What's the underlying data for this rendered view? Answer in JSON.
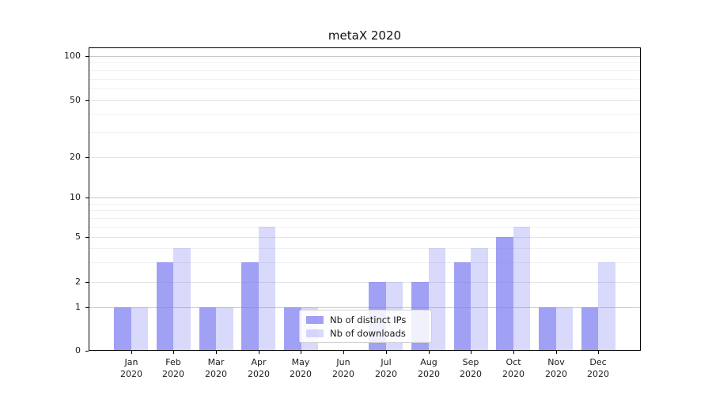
{
  "title": "metaX 2020",
  "chart_data": {
    "type": "bar",
    "title": "metaX 2020",
    "categories": [
      "Jan",
      "Feb",
      "Mar",
      "Apr",
      "May",
      "Jun",
      "Jul",
      "Aug",
      "Sep",
      "Oct",
      "Nov",
      "Dec"
    ],
    "category_year_line": "2020",
    "series": [
      {
        "name": "Nb of distinct IPs",
        "color": "rgba(120,120,240,0.70)",
        "values": [
          1,
          3,
          1,
          3,
          1,
          0,
          2,
          2,
          3,
          5,
          1,
          1
        ]
      },
      {
        "name": "Nb of downloads",
        "color": "rgba(120,120,240,0.28)",
        "values": [
          1,
          4,
          1,
          6,
          1,
          0,
          2,
          4,
          4,
          6,
          1,
          3
        ]
      }
    ],
    "xlabel": "",
    "ylabel": "",
    "yticks": [
      0,
      1,
      2,
      5,
      10,
      20,
      50,
      100
    ],
    "major_gridline_values": [
      1,
      10,
      100
    ],
    "minor_gridline_values": [
      3,
      4,
      6,
      7,
      8,
      9,
      30,
      40,
      60,
      70,
      80,
      90
    ],
    "ylim": [
      0,
      112
    ],
    "yscale": "symlog",
    "grid": "on",
    "legend_position": "lower-center",
    "legend_framealpha": 0.85
  }
}
